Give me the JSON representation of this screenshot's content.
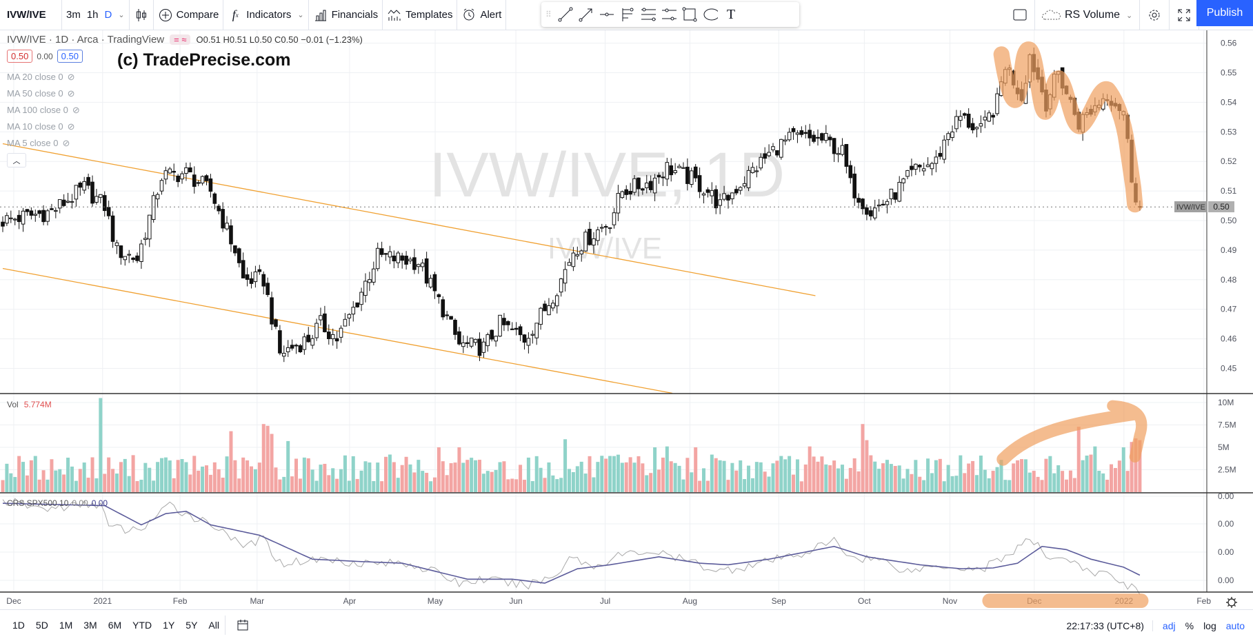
{
  "toolbar": {
    "symbol": "IVW/IVE",
    "intervals": [
      "3m",
      "1h",
      "D"
    ],
    "compare": "Compare",
    "indicators": "Indicators",
    "financials": "Financials",
    "templates": "Templates",
    "alert": "Alert",
    "layout_name": "RS Volume",
    "publish": "Publish"
  },
  "legend": {
    "title": "IVW/IVE · 1D · Arca · TradingView",
    "ohlc": "O0.51 H0.51 L0.50 C0.50 −0.01 (−1.23%)",
    "bid": "0.50",
    "spread": "0.00",
    "ask": "0.50",
    "mas": [
      "MA 20 close 0",
      "MA 50 close 0",
      "MA 100 close 0",
      "MA 10 close 0",
      "MA 5 close 0"
    ]
  },
  "watermark": {
    "main": "IVW/IVE, 1D",
    "sub": "IVW/IVE"
  },
  "brand_text": "(c) TradePrecise.com",
  "volume_legend": {
    "label": "Vol",
    "value": "5.774M"
  },
  "crs_legend": {
    "label": "CRS SPX500 10",
    "v1": "0.00",
    "v2": "0.00"
  },
  "last_price": {
    "symbol": "IVW/IVE",
    "value": "0.50",
    "price": 0.5046
  },
  "colors": {
    "accent": "#2962ff",
    "up_vol": "#8fd3c9",
    "down_vol": "#f3a5a3",
    "trend": "#f0a030",
    "highlight": "#f0a060",
    "crs_smooth": "#5b5b9a",
    "crs_raw": "#a8a8a8"
  },
  "chart_data": {
    "type": "candlestick",
    "price_ticks": [
      "0.56",
      "0.55",
      "0.54",
      "0.53",
      "0.52",
      "0.51",
      "0.50",
      "0.49",
      "0.48",
      "0.47",
      "0.46",
      "0.45"
    ],
    "price_tick_values": [
      0.56,
      0.55,
      0.54,
      0.53,
      0.52,
      0.51,
      0.5,
      0.49,
      0.48,
      0.47,
      0.46,
      0.45
    ],
    "time_labels": [
      {
        "day": 2.7,
        "label": "Dec"
      },
      {
        "day": 24.5,
        "label": "2021"
      },
      {
        "day": 43.5,
        "label": "Feb"
      },
      {
        "day": 62.4,
        "label": "Mar"
      },
      {
        "day": 85.1,
        "label": "Apr"
      },
      {
        "day": 106.1,
        "label": "May"
      },
      {
        "day": 125.9,
        "label": "Jun"
      },
      {
        "day": 147.8,
        "label": "Jul"
      },
      {
        "day": 168.6,
        "label": "Aug"
      },
      {
        "day": 190.4,
        "label": "Sep"
      },
      {
        "day": 211.4,
        "label": "Oct"
      },
      {
        "day": 232.4,
        "label": "Nov"
      },
      {
        "day": 253.1,
        "label": "Dec"
      },
      {
        "day": 275.1,
        "label": "2022"
      },
      {
        "day": 294.7,
        "label": "Feb"
      }
    ],
    "close_keypoints": [
      [
        0,
        0.5
      ],
      [
        12,
        0.503
      ],
      [
        20,
        0.511
      ],
      [
        25,
        0.505
      ],
      [
        28,
        0.49
      ],
      [
        33,
        0.487
      ],
      [
        39,
        0.515
      ],
      [
        45,
        0.516
      ],
      [
        51,
        0.51
      ],
      [
        57,
        0.49
      ],
      [
        59,
        0.48
      ],
      [
        64,
        0.48
      ],
      [
        68,
        0.455
      ],
      [
        75,
        0.46
      ],
      [
        78,
        0.465
      ],
      [
        82,
        0.46
      ],
      [
        86,
        0.47
      ],
      [
        92,
        0.488
      ],
      [
        102,
        0.486
      ],
      [
        108,
        0.47
      ],
      [
        112,
        0.458
      ],
      [
        118,
        0.457
      ],
      [
        122,
        0.465
      ],
      [
        128,
        0.46
      ],
      [
        133,
        0.47
      ],
      [
        137,
        0.48
      ],
      [
        140,
        0.49
      ],
      [
        149,
        0.5
      ],
      [
        152,
        0.51
      ],
      [
        159,
        0.513
      ],
      [
        163,
        0.518
      ],
      [
        169,
        0.514
      ],
      [
        173,
        0.51
      ],
      [
        176,
        0.505
      ],
      [
        184,
        0.517
      ],
      [
        190,
        0.525
      ],
      [
        194,
        0.528
      ],
      [
        202,
        0.527
      ],
      [
        206,
        0.523
      ],
      [
        208,
        0.512
      ],
      [
        213,
        0.503
      ],
      [
        218,
        0.508
      ],
      [
        224,
        0.517
      ],
      [
        229,
        0.52
      ],
      [
        232,
        0.53
      ],
      [
        235,
        0.535
      ],
      [
        240,
        0.53
      ],
      [
        244,
        0.54
      ],
      [
        246,
        0.553
      ],
      [
        250,
        0.542
      ],
      [
        252,
        0.556
      ],
      [
        256,
        0.54
      ],
      [
        259,
        0.55
      ],
      [
        264,
        0.533
      ],
      [
        271,
        0.543
      ],
      [
        275,
        0.537
      ],
      [
        277,
        0.515
      ],
      [
        279,
        0.503
      ]
    ],
    "volume": {
      "unit": "M",
      "ticks": [
        "10M",
        "7.5M",
        "5M",
        "2.5M"
      ],
      "tick_values": [
        10,
        7.5,
        5,
        2.5
      ],
      "base_range": [
        1.2,
        4.2
      ],
      "spikes": [
        [
          24,
          10.5
        ],
        [
          56,
          6.8
        ],
        [
          64,
          7.6
        ],
        [
          65,
          7.4
        ],
        [
          66,
          6.5
        ],
        [
          70,
          5.7
        ],
        [
          107,
          5.0
        ],
        [
          112,
          5.0
        ],
        [
          138,
          5.9
        ],
        [
          160,
          5.0
        ],
        [
          163,
          5.1
        ],
        [
          170,
          5.0
        ],
        [
          198,
          5.1
        ],
        [
          211,
          7.6
        ],
        [
          212,
          5.8
        ],
        [
          264,
          7.3
        ],
        [
          268,
          5.1
        ],
        [
          275,
          5.0
        ],
        [
          277,
          5.6
        ],
        [
          278,
          6.0
        ],
        [
          279,
          5.8
        ]
      ]
    },
    "crs": {
      "ticks": [
        "0.00",
        "0.00",
        "0.00",
        "0.00",
        "0.00"
      ],
      "smooth_keypoints": [
        [
          0,
          0.115
        ],
        [
          25,
          0.112
        ],
        [
          34,
          0.088
        ],
        [
          40,
          0.102
        ],
        [
          45,
          0.105
        ],
        [
          51,
          0.088
        ],
        [
          63,
          0.075
        ],
        [
          76,
          0.045
        ],
        [
          88,
          0.042
        ],
        [
          98,
          0.04
        ],
        [
          106,
          0.03
        ],
        [
          114,
          0.02
        ],
        [
          125,
          0.02
        ],
        [
          133,
          0.015
        ],
        [
          141,
          0.033
        ],
        [
          149,
          0.038
        ],
        [
          161,
          0.048
        ],
        [
          171,
          0.04
        ],
        [
          178,
          0.038
        ],
        [
          188,
          0.045
        ],
        [
          204,
          0.061
        ],
        [
          212,
          0.048
        ],
        [
          225,
          0.038
        ],
        [
          235,
          0.033
        ],
        [
          243,
          0.034
        ],
        [
          249,
          0.04
        ],
        [
          255,
          0.061
        ],
        [
          261,
          0.057
        ],
        [
          267,
          0.045
        ],
        [
          275,
          0.035
        ],
        [
          279,
          0.025
        ]
      ],
      "raw_keypoints": [
        [
          0,
          0.118
        ],
        [
          10,
          0.108
        ],
        [
          24,
          0.115
        ],
        [
          26,
          0.085
        ],
        [
          33,
          0.08
        ],
        [
          41,
          0.112
        ],
        [
          46,
          0.1
        ],
        [
          55,
          0.08
        ],
        [
          58,
          0.06
        ],
        [
          64,
          0.07
        ],
        [
          68,
          0.04
        ],
        [
          78,
          0.045
        ],
        [
          90,
          0.04
        ],
        [
          100,
          0.04
        ],
        [
          108,
          0.025
        ],
        [
          112,
          0.015
        ],
        [
          118,
          0.02
        ],
        [
          128,
          0.012
        ],
        [
          136,
          0.025
        ],
        [
          139,
          0.05
        ],
        [
          145,
          0.035
        ],
        [
          151,
          0.05
        ],
        [
          159,
          0.055
        ],
        [
          170,
          0.04
        ],
        [
          176,
          0.03
        ],
        [
          186,
          0.04
        ],
        [
          196,
          0.052
        ],
        [
          204,
          0.068
        ],
        [
          208,
          0.048
        ],
        [
          215,
          0.045
        ],
        [
          222,
          0.03
        ],
        [
          230,
          0.038
        ],
        [
          240,
          0.032
        ],
        [
          248,
          0.055
        ],
        [
          252,
          0.07
        ],
        [
          256,
          0.05
        ],
        [
          262,
          0.045
        ],
        [
          265,
          0.03
        ],
        [
          272,
          0.025
        ],
        [
          277,
          0.01
        ],
        [
          279,
          0.005
        ]
      ]
    },
    "drawings": [
      {
        "type": "trend_line",
        "from": [
          0,
          0.526
        ],
        "to": [
          199.4,
          0.4746
        ]
      },
      {
        "type": "trend_line",
        "from": [
          0,
          0.4838
        ],
        "to": [
          164.3,
          0.4416
        ]
      }
    ]
  },
  "time_axis_extra": {
    "settings": "settings"
  },
  "bottom": {
    "ranges": [
      "1D",
      "5D",
      "1M",
      "3M",
      "6M",
      "YTD",
      "1Y",
      "5Y",
      "All"
    ],
    "clock": "22:17:33 (UTC+8)",
    "adj": "adj",
    "pct": "%",
    "log": "log",
    "auto": "auto"
  }
}
